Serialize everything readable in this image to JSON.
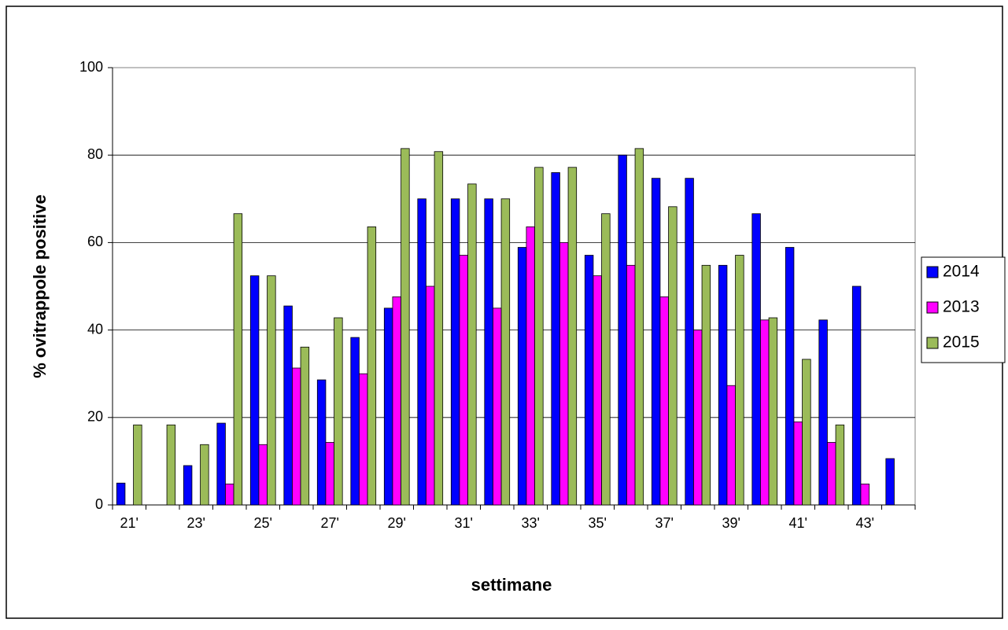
{
  "chart_data": {
    "type": "bar",
    "x_label": "settimane",
    "y_label": "% ovitrappole positive",
    "categories": [
      "21'",
      null,
      "23'",
      null,
      "25'",
      null,
      "27'",
      null,
      "29'",
      null,
      "31'",
      null,
      "33'",
      null,
      "35'",
      null,
      "37'",
      null,
      "39'",
      null,
      "41'",
      null,
      "43'",
      null
    ],
    "series": [
      {
        "name": "2014",
        "color": "#0000ff",
        "values": [
          5,
          0,
          9,
          18.7,
          52.4,
          45.5,
          28.6,
          38.3,
          45,
          70,
          70,
          70,
          58.9,
          76,
          57.1,
          80,
          74.7,
          74.7,
          54.8,
          66.6,
          58.9,
          42.3,
          50,
          10.6
        ]
      },
      {
        "name": "2013",
        "color": "#ff00ff",
        "values": [
          0,
          0,
          0,
          4.8,
          13.8,
          31.3,
          14.3,
          30,
          47.6,
          50,
          57.1,
          45,
          63.6,
          60,
          52.4,
          54.8,
          47.6,
          40,
          27.3,
          42.3,
          19,
          14.3,
          4.8,
          0
        ]
      },
      {
        "name": "2015",
        "color": "#9bbb59",
        "values": [
          18.3,
          18.3,
          13.8,
          66.6,
          52.4,
          36.1,
          42.8,
          63.6,
          81.5,
          80.8,
          73.4,
          70,
          77.2,
          77.2,
          66.6,
          81.5,
          68.2,
          54.8,
          57.1,
          42.8,
          33.3,
          18.3,
          0,
          0
        ]
      }
    ],
    "ylim": [
      0,
      100
    ],
    "yticks": [
      0,
      20,
      40,
      60,
      80,
      100
    ],
    "grid": true,
    "legend": "right"
  }
}
